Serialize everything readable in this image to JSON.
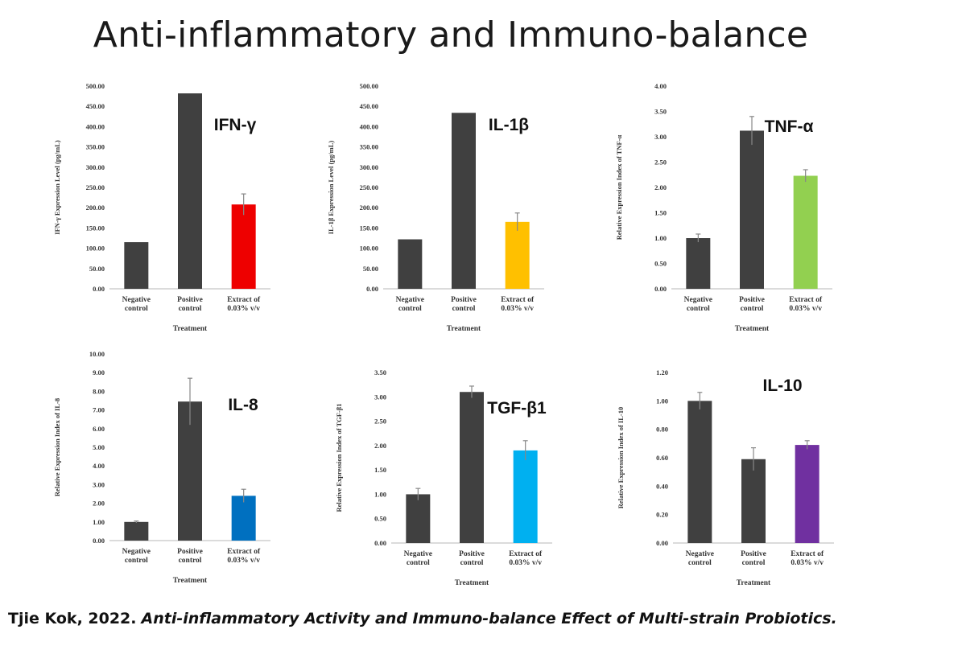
{
  "title": "Anti-inflammatory and Immuno-balance",
  "citation": {
    "author_year": "Tjie Kok, 2022.",
    "paper_title": "Anti-inflammatory Activity and Immuno-balance Effect of Multi-strain Probiotics."
  },
  "chart_data": [
    {
      "type": "bar",
      "marker": "IFN-γ",
      "ylabel": "IFN-γ Expression Level (pg/mL)",
      "xlabel": "Treatment",
      "categories": [
        [
          "Negative",
          "control"
        ],
        [
          "Positive",
          "control"
        ],
        [
          "Extract of",
          "0.03% v/v"
        ]
      ],
      "values": [
        115,
        482,
        208
      ],
      "errors": [
        0,
        0,
        26
      ],
      "colors": [
        "#404040",
        "#404040",
        "#ee0000"
      ],
      "ylim": [
        0,
        500
      ],
      "yticks": [
        "0.00",
        "50.00",
        "100.00",
        "150.00",
        "200.00",
        "250.00",
        "300.00",
        "350.00",
        "400.00",
        "450.00",
        "500.00"
      ]
    },
    {
      "type": "bar",
      "marker": "IL-1β",
      "ylabel": "IL-1β Expression Level (pg/mL)",
      "xlabel": "Treatment",
      "categories": [
        [
          "Negative",
          "control"
        ],
        [
          "Positive",
          "control"
        ],
        [
          "Extract of",
          "0.03% v/v"
        ]
      ],
      "values": [
        122,
        434,
        165
      ],
      "errors": [
        0,
        0,
        22
      ],
      "colors": [
        "#404040",
        "#404040",
        "#ffc000"
      ],
      "ylim": [
        0,
        500
      ],
      "yticks": [
        "0.00",
        "50.00",
        "100.00",
        "150.00",
        "200.00",
        "250.00",
        "300.00",
        "350.00",
        "400.00",
        "450.00",
        "500.00"
      ]
    },
    {
      "type": "bar",
      "marker": "TNF-α",
      "ylabel": "Relative Expression Index of TNF-α",
      "xlabel": "Treatment",
      "categories": [
        [
          "Negative",
          "control"
        ],
        [
          "Positive",
          "control"
        ],
        [
          "Extract of",
          "0.03% v/v"
        ]
      ],
      "values": [
        1.0,
        3.12,
        2.23
      ],
      "errors": [
        0.08,
        0.28,
        0.12
      ],
      "colors": [
        "#404040",
        "#404040",
        "#92d050"
      ],
      "ylim": [
        0,
        4.0
      ],
      "yticks": [
        "0.00",
        "0.50",
        "1.00",
        "1.50",
        "2.00",
        "2.50",
        "3.00",
        "3.50",
        "4.00"
      ]
    },
    {
      "type": "bar",
      "marker": "IL-8",
      "ylabel": "Relative Expression Index of IL-8",
      "xlabel": "Treatment",
      "categories": [
        [
          "Negative",
          "control"
        ],
        [
          "Positive",
          "control"
        ],
        [
          "Extract of",
          "0.03% v/v"
        ]
      ],
      "values": [
        1.0,
        7.45,
        2.4
      ],
      "errors": [
        0.05,
        1.25,
        0.35
      ],
      "colors": [
        "#404040",
        "#404040",
        "#0070c0"
      ],
      "ylim": [
        0,
        10.0
      ],
      "yticks": [
        "0.00",
        "1.00",
        "2.00",
        "3.00",
        "4.00",
        "5.00",
        "6.00",
        "7.00",
        "8.00",
        "9.00",
        "10.00"
      ]
    },
    {
      "type": "bar",
      "marker": "TGF-β1",
      "ylabel": "Relative Expression Index of TGF-β1",
      "xlabel": "Treatment",
      "categories": [
        [
          "Negative",
          "control"
        ],
        [
          "Positive",
          "control"
        ],
        [
          "Extract of",
          "0.03% v/v"
        ]
      ],
      "values": [
        1.0,
        3.1,
        1.9
      ],
      "errors": [
        0.12,
        0.12,
        0.2
      ],
      "colors": [
        "#404040",
        "#404040",
        "#00b0f0"
      ],
      "ylim": [
        0,
        3.5
      ],
      "yticks": [
        "0.00",
        "0.50",
        "1.00",
        "1.50",
        "2.00",
        "2.50",
        "3.00",
        "3.50"
      ]
    },
    {
      "type": "bar",
      "marker": "IL-10",
      "ylabel": "Relative Expression Index of IL-10",
      "xlabel": "Treatment",
      "categories": [
        [
          "Negative",
          "control"
        ],
        [
          "Positive",
          "control"
        ],
        [
          "Extract of",
          "0.03% v/v"
        ]
      ],
      "values": [
        1.0,
        0.59,
        0.69
      ],
      "errors": [
        0.06,
        0.08,
        0.03
      ],
      "colors": [
        "#404040",
        "#404040",
        "#7030a0"
      ],
      "ylim": [
        0,
        1.2
      ],
      "yticks": [
        "0.00",
        "0.20",
        "0.40",
        "0.60",
        "0.80",
        "1.00",
        "1.20"
      ]
    }
  ]
}
